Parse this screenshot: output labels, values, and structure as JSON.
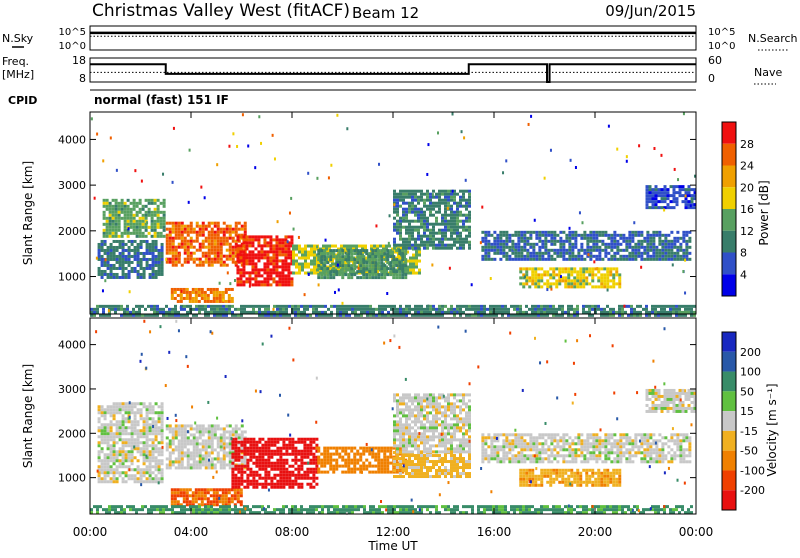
{
  "header": {
    "title": "Christmas Valley West (fitACF)",
    "beam": "Beam 12",
    "date": "09/Jun/2015"
  },
  "side_labels": {
    "nsky": "N.Sky",
    "freq_line1": "Freq.",
    "freq_line2": "[MHz]",
    "cpid": "CPID",
    "nsearch": "N.Search",
    "nave": "Nave"
  },
  "cpid_text": "normal (fast) 151 IF",
  "chart_data": [
    {
      "type": "line",
      "name": "noise",
      "yticks_left": [
        "10^5",
        "10^0"
      ],
      "yticks_right": [
        "10^5",
        "10^0"
      ],
      "series": [
        {
          "name": "N.Sky",
          "style": "solid",
          "x": [
            0,
            24
          ],
          "y": [
            10,
            10
          ]
        },
        {
          "name": "N.Search",
          "style": "dotted",
          "x": [
            0,
            24
          ],
          "y": [
            8,
            8
          ]
        }
      ]
    },
    {
      "type": "line",
      "name": "frequency",
      "yticks_left": [
        "18",
        "8"
      ],
      "yticks_right": [
        "60",
        "0"
      ],
      "ylim_left": [
        8,
        18
      ],
      "ylim_right": [
        0,
        60
      ],
      "series": [
        {
          "name": "Freq.",
          "style": "solid",
          "x": [
            0,
            3.0,
            3.0,
            15.0,
            15.0,
            18.1,
            18.1,
            18.2,
            18.2,
            24
          ],
          "y": [
            15.4,
            15.4,
            11.4,
            11.4,
            15.4,
            15.4,
            8.0,
            8.0,
            15.4,
            15.4
          ]
        },
        {
          "name": "Nave",
          "style": "dotted",
          "x": [
            0,
            24
          ],
          "y": [
            24,
            24
          ]
        }
      ]
    },
    {
      "type": "heatmap",
      "name": "power",
      "ylabel": "Slant Range [km]",
      "yticks": [
        "1000",
        "2000",
        "3000",
        "4000"
      ],
      "ylim": [
        180,
        4600
      ],
      "xlim": [
        0,
        24
      ],
      "colorbar": {
        "label": "Power [dB]",
        "ticks": [
          "4",
          "8",
          "12",
          "16",
          "20",
          "24",
          "28"
        ],
        "colors": [
          "#0000e8",
          "#3050c8",
          "#387d6a",
          "#58a060",
          "#f0d000",
          "#f0a000",
          "#f06000",
          "#f01010"
        ],
        "range": [
          0,
          32
        ]
      },
      "echo_regions": [
        {
          "t0": 0.5,
          "t1": 2.9,
          "r0": 1900,
          "r1": 2700,
          "v": 14
        },
        {
          "t0": 0.3,
          "t1": 2.9,
          "r0": 1000,
          "r1": 1800,
          "v": 9
        },
        {
          "t0": 3.0,
          "t1": 6.2,
          "r0": 1250,
          "r1": 2200,
          "v": 26
        },
        {
          "t0": 3.2,
          "t1": 5.6,
          "r0": 450,
          "r1": 750,
          "v": 24
        },
        {
          "t0": 5.8,
          "t1": 8.0,
          "r0": 800,
          "r1": 1900,
          "v": 30
        },
        {
          "t0": 8.0,
          "t1": 13.0,
          "r0": 1100,
          "r1": 1700,
          "v": 16
        },
        {
          "t0": 9.0,
          "t1": 12.5,
          "r0": 1000,
          "r1": 1600,
          "v": 12
        },
        {
          "t0": 12.0,
          "t1": 15.0,
          "r0": 1600,
          "r1": 2900,
          "v": 10
        },
        {
          "t0": 15.5,
          "t1": 23.8,
          "r0": 1350,
          "r1": 2000,
          "v": 8
        },
        {
          "t0": 17.0,
          "t1": 21.0,
          "r0": 800,
          "r1": 1200,
          "v": 18
        },
        {
          "t0": 22.0,
          "t1": 24.0,
          "r0": 2500,
          "r1": 3000,
          "v": 6
        },
        {
          "t0": 0.0,
          "t1": 24.0,
          "r0": 180,
          "r1": 380,
          "v": 10
        }
      ]
    },
    {
      "type": "heatmap",
      "name": "velocity",
      "ylabel": "Slant Range [km]",
      "xlabel": "Time UT",
      "xticks": [
        "00:00",
        "04:00",
        "08:00",
        "12:00",
        "16:00",
        "20:00",
        "00:00"
      ],
      "yticks": [
        "1000",
        "2000",
        "3000",
        "4000"
      ],
      "ylim": [
        180,
        4600
      ],
      "xlim": [
        0,
        24
      ],
      "colorbar": {
        "label": "Velocity [m s⁻¹]",
        "ticks": [
          "200",
          "100",
          "50",
          "15",
          "-15",
          "-50",
          "-100",
          "-200"
        ],
        "colors": [
          "#1828c0",
          "#2858a8",
          "#388c68",
          "#60c040",
          "#c8c8c8",
          "#f0b020",
          "#f08000",
          "#f04000",
          "#e81010"
        ],
        "range": [
          -250,
          250
        ]
      },
      "echo_regions": [
        {
          "t0": 0.3,
          "t1": 2.9,
          "r0": 900,
          "r1": 2700,
          "v": 0
        },
        {
          "t0": 3.0,
          "t1": 6.2,
          "r0": 1250,
          "r1": 2200,
          "v": 0
        },
        {
          "t0": 3.2,
          "t1": 6.0,
          "r0": 380,
          "r1": 760,
          "v": -100
        },
        {
          "t0": 5.6,
          "t1": 9.0,
          "r0": 800,
          "r1": 1900,
          "v": -220
        },
        {
          "t0": 9.0,
          "t1": 12.5,
          "r0": 1100,
          "r1": 1700,
          "v": -80
        },
        {
          "t0": 12.0,
          "t1": 15.0,
          "r0": 1000,
          "r1": 1600,
          "v": -30
        },
        {
          "t0": 12.0,
          "t1": 15.0,
          "r0": 1600,
          "r1": 2900,
          "v": 0
        },
        {
          "t0": 15.5,
          "t1": 23.8,
          "r0": 1350,
          "r1": 2000,
          "v": 0
        },
        {
          "t0": 17.0,
          "t1": 21.0,
          "r0": 800,
          "r1": 1200,
          "v": -40
        },
        {
          "t0": 22.0,
          "t1": 24.0,
          "r0": 2500,
          "r1": 3000,
          "v": 0
        },
        {
          "t0": 0.0,
          "t1": 24.0,
          "r0": 180,
          "r1": 380,
          "v": 40
        }
      ]
    }
  ]
}
